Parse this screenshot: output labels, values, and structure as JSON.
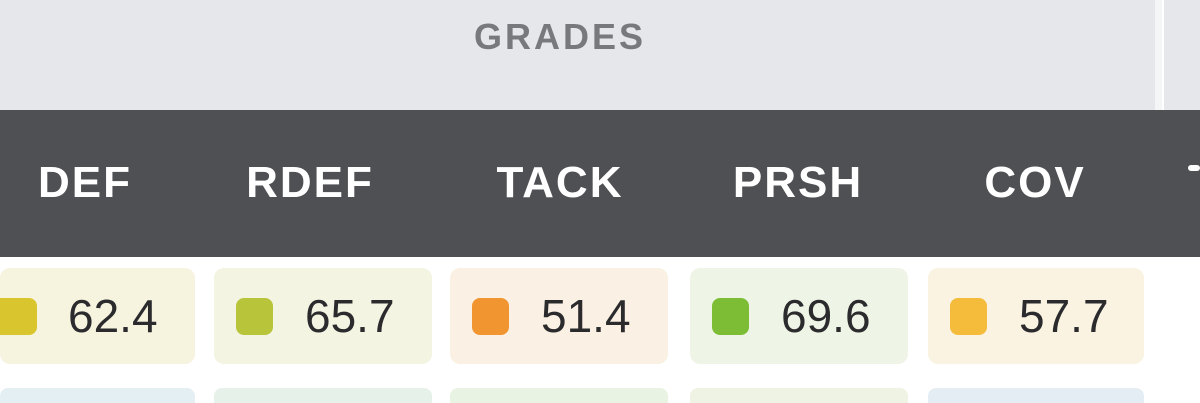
{
  "section": {
    "title": "GRADES"
  },
  "columns": [
    {
      "key": "def",
      "label": "DEF"
    },
    {
      "key": "rdef",
      "label": "RDEF"
    },
    {
      "key": "tack",
      "label": "TACK"
    },
    {
      "key": "prsh",
      "label": "PRSH"
    },
    {
      "key": "cov",
      "label": "COV"
    }
  ],
  "row": [
    {
      "value": "62.4",
      "color": "#d9c52e",
      "bg": "#f6f3df"
    },
    {
      "value": "65.7",
      "color": "#b8c43a",
      "bg": "#f3f4e2"
    },
    {
      "value": "51.4",
      "color": "#f0952f",
      "bg": "#faf0e4"
    },
    {
      "value": "69.6",
      "color": "#7dbd36",
      "bg": "#eef5e6"
    },
    {
      "value": "57.7",
      "color": "#f5bc3b",
      "bg": "#faf3e2"
    }
  ],
  "colors": {
    "header_bg": "#4f5053",
    "group_bg": "#e6e7ea",
    "group_text": "#77797d"
  }
}
